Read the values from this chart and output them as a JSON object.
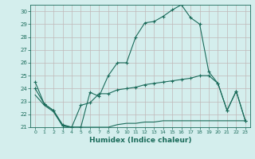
{
  "xlabel": "Humidex (Indice chaleur)",
  "xlim": [
    -0.5,
    23.5
  ],
  "ylim": [
    21,
    30.5
  ],
  "yticks": [
    21,
    22,
    23,
    24,
    25,
    26,
    27,
    28,
    29,
    30
  ],
  "xticks": [
    0,
    1,
    2,
    3,
    4,
    5,
    6,
    7,
    8,
    9,
    10,
    11,
    12,
    13,
    14,
    15,
    16,
    17,
    18,
    19,
    20,
    21,
    22,
    23
  ],
  "bg_color": "#d4eeed",
  "grid_color": "#c0b8b8",
  "line_color": "#1a6b5a",
  "line1_x": [
    0,
    1,
    2,
    3,
    4,
    5,
    6,
    7,
    8,
    9,
    10,
    11,
    12,
    13,
    14,
    15,
    16,
    17,
    18,
    19,
    20,
    21,
    22,
    23
  ],
  "line1_y": [
    24.5,
    22.8,
    22.3,
    21.2,
    21.0,
    21.0,
    23.7,
    23.4,
    25.0,
    26.0,
    26.0,
    28.0,
    29.1,
    29.2,
    29.6,
    30.1,
    30.5,
    29.5,
    29.0,
    25.3,
    24.4,
    22.3,
    23.8,
    21.5
  ],
  "line2_x": [
    0,
    1,
    2,
    3,
    4,
    5,
    6,
    7,
    8,
    9,
    10,
    11,
    12,
    13,
    14,
    15,
    16,
    17,
    18,
    19,
    20,
    21,
    22,
    23
  ],
  "line2_y": [
    24.0,
    22.8,
    22.3,
    21.1,
    21.0,
    22.7,
    22.9,
    23.6,
    23.6,
    23.9,
    24.0,
    24.1,
    24.3,
    24.4,
    24.5,
    24.6,
    24.7,
    24.8,
    25.0,
    25.0,
    24.4,
    22.3,
    23.8,
    21.5
  ],
  "line3_x": [
    0,
    1,
    2,
    3,
    4,
    5,
    6,
    7,
    8,
    9,
    10,
    11,
    12,
    13,
    14,
    15,
    16,
    17,
    18,
    19,
    20,
    21,
    22,
    23
  ],
  "line3_y": [
    23.5,
    22.7,
    22.2,
    21.1,
    21.0,
    21.0,
    21.0,
    21.0,
    21.0,
    21.2,
    21.3,
    21.3,
    21.4,
    21.4,
    21.5,
    21.5,
    21.5,
    21.5,
    21.5,
    21.5,
    21.5,
    21.5,
    21.5,
    21.5
  ]
}
